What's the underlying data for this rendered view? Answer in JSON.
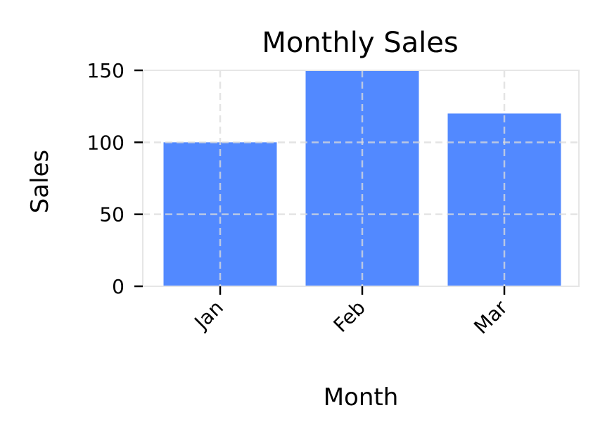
{
  "colors": {
    "bar": "#5289ff",
    "grid": "#dcdcdc",
    "frame": "#e6e6e6",
    "tick": "#000000"
  },
  "chart_data": {
    "type": "bar",
    "title": "Monthly Sales",
    "xlabel": "Month",
    "ylabel": "Sales",
    "categories": [
      "Jan",
      "Feb",
      "Mar"
    ],
    "values": [
      100,
      150,
      120
    ],
    "ylim": [
      0,
      150
    ],
    "yticks": [
      0,
      50,
      100,
      150
    ],
    "grid": true,
    "grid_style": "dashed",
    "xtick_rotation": -45
  }
}
